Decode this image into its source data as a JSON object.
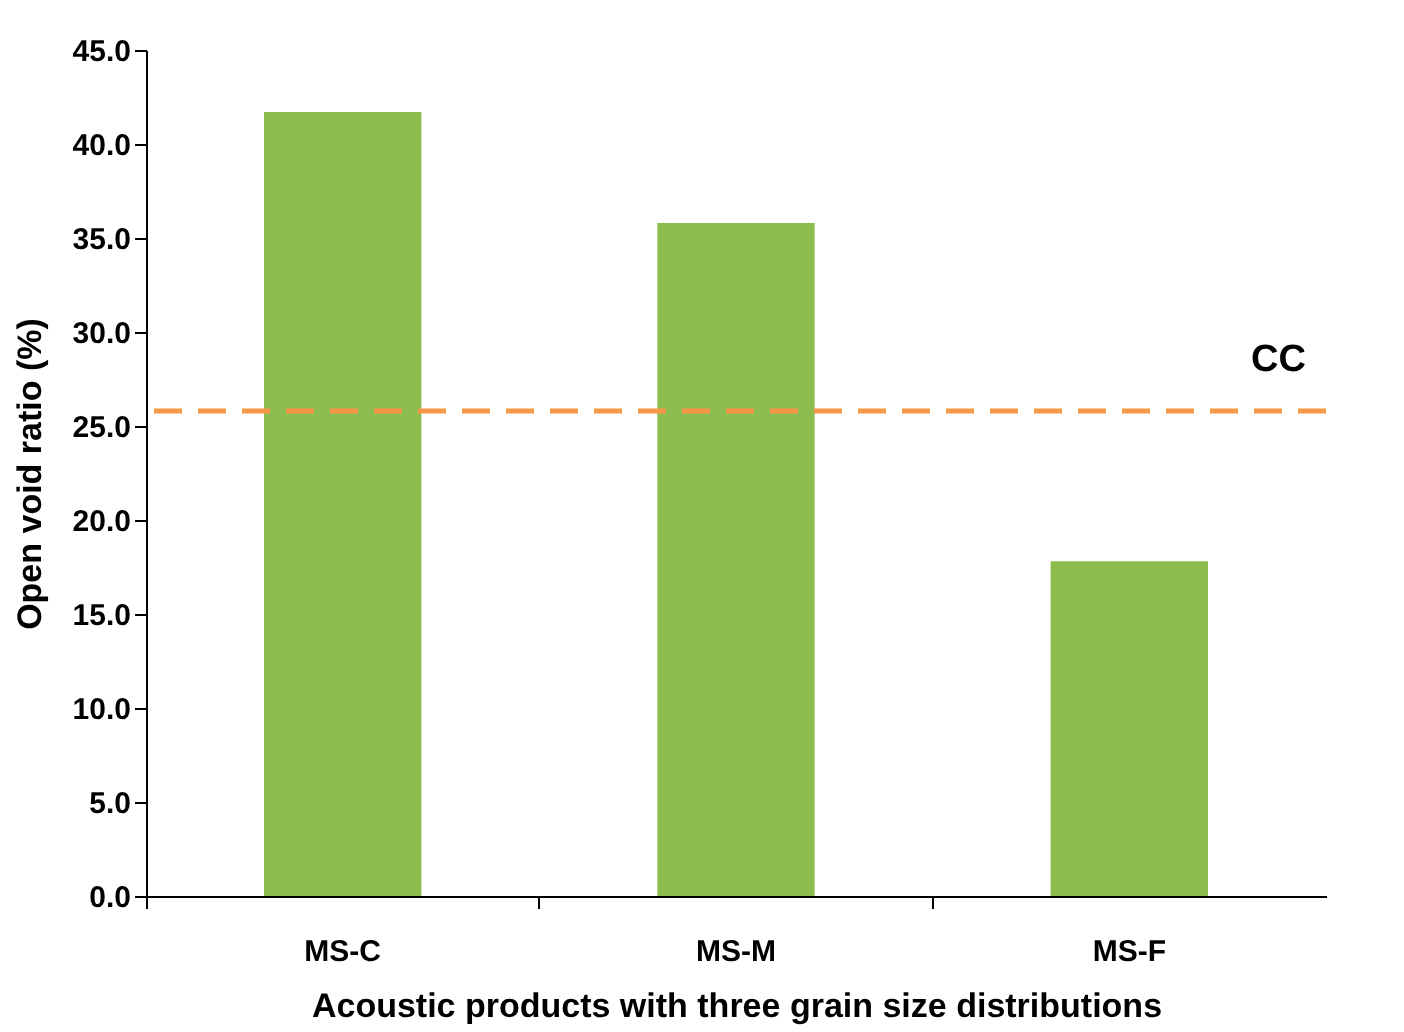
{
  "chart_data": {
    "type": "bar",
    "xlabel": "Acoustic products with three grain size distributions",
    "ylabel": "Open void ratio (%)",
    "categories": [
      "MS-C",
      "MS-M",
      "MS-F"
    ],
    "values": [
      41.7,
      35.8,
      17.8
    ],
    "color": "#8cbb4e",
    "ylim": [
      0,
      45
    ],
    "yticks": [
      {
        "value": 0,
        "label": "0.0"
      },
      {
        "value": 5,
        "label": "5.0"
      },
      {
        "value": 10,
        "label": "10.0"
      },
      {
        "value": 15,
        "label": "15.0"
      },
      {
        "value": 20,
        "label": "20.0"
      },
      {
        "value": 25,
        "label": "25.0"
      },
      {
        "value": 30,
        "label": "30.0"
      },
      {
        "value": 35,
        "label": "35.0"
      },
      {
        "value": 40,
        "label": "40.0"
      },
      {
        "value": 45,
        "label": "45.0"
      }
    ],
    "ref_lines": [
      {
        "axis": "y",
        "value": 25.8,
        "label": "CC",
        "color": "#f79646",
        "line_style": "dashed"
      }
    ],
    "grid": false
  }
}
